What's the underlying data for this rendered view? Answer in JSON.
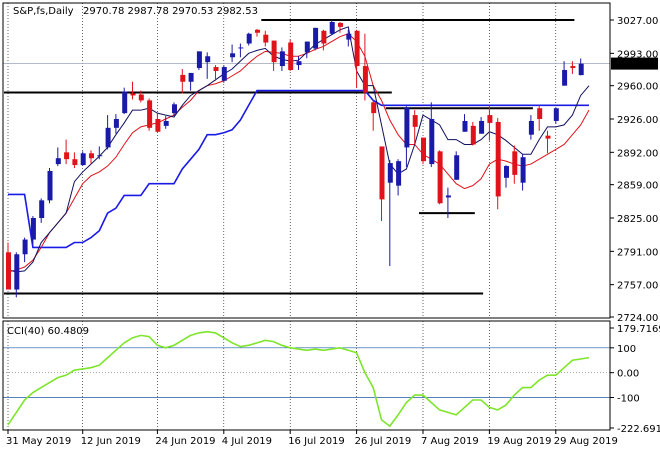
{
  "header": {
    "symbol": "S&P,fs,Daily",
    "ohlc": "2970.78 2987.78 2970.53 2982.53"
  },
  "price_tag": "2982.53",
  "cci": {
    "label": "CCI(40) 60.4809",
    "axis_labels": [
      "179.7169",
      "100",
      "0.00",
      "-100",
      "-222.6919"
    ]
  },
  "colors": {
    "bull": "#1a1aa8",
    "bear": "#e0121a",
    "kijun": "#1a1ae6",
    "tenkan": "#101060",
    "red_line": "#e0121a",
    "cci": "#7ee52a",
    "level": "#1b5aa6",
    "price_tag_bg": "#000000",
    "price_tag_fg": "#ffffff"
  },
  "chart_data": {
    "type": "candlestick",
    "y_ticks": [
      3027.0,
      2993.0,
      2960.0,
      2926.0,
      2892.0,
      2859.0,
      2825.0,
      2791.0,
      2757.0,
      2724.0
    ],
    "y_tick_labels": [
      "3027.00",
      "2993.00",
      "2960.00",
      "2926.00",
      "2892.00",
      "2859.00",
      "2825.00",
      "2791.00",
      "2757.00",
      "2724.00"
    ],
    "x_tick_labels": [
      "31 May 2019",
      "12 Jun 2019",
      "24 Jun 2019",
      "4 Jul 2019",
      "16 Jul 2019",
      "26 Jul 2019",
      "7 Aug 2019",
      "19 Aug 2019",
      "29 Aug 2019"
    ],
    "candles": [
      {
        "date": "31 May",
        "o": 2790,
        "h": 2800,
        "l": 2752,
        "c": 2752
      },
      {
        "date": "3 Jun",
        "o": 2752,
        "h": 2790,
        "l": 2744,
        "c": 2788
      },
      {
        "date": "4 Jun",
        "o": 2788,
        "h": 2805,
        "l": 2780,
        "c": 2803
      },
      {
        "date": "5 Jun",
        "o": 2803,
        "h": 2827,
        "l": 2798,
        "c": 2825
      },
      {
        "date": "6 Jun",
        "o": 2825,
        "h": 2845,
        "l": 2820,
        "c": 2843
      },
      {
        "date": "7 Jun",
        "o": 2843,
        "h": 2876,
        "l": 2840,
        "c": 2873
      },
      {
        "date": "10 Jun",
        "o": 2880,
        "h": 2897,
        "l": 2878,
        "c": 2886
      },
      {
        "date": "11 Jun",
        "o": 2892,
        "h": 2905,
        "l": 2880,
        "c": 2885
      },
      {
        "date": "12 Jun",
        "o": 2885,
        "h": 2892,
        "l": 2876,
        "c": 2879
      },
      {
        "date": "13 Jun",
        "o": 2879,
        "h": 2893,
        "l": 2878,
        "c": 2891
      },
      {
        "date": "14 Jun",
        "o": 2891,
        "h": 2894,
        "l": 2880,
        "c": 2886
      },
      {
        "date": "17 Jun",
        "o": 2889,
        "h": 2898,
        "l": 2885,
        "c": 2889
      },
      {
        "date": "18 Jun",
        "o": 2897,
        "h": 2930,
        "l": 2895,
        "c": 2917
      },
      {
        "date": "19 Jun",
        "o": 2917,
        "h": 2931,
        "l": 2911,
        "c": 2926
      },
      {
        "date": "20 Jun",
        "o": 2932,
        "h": 2958,
        "l": 2931,
        "c": 2954
      },
      {
        "date": "21 Jun",
        "o": 2952,
        "h": 2964,
        "l": 2946,
        "c": 2950
      },
      {
        "date": "24 Jun",
        "o": 2951,
        "h": 2955,
        "l": 2943,
        "c": 2945
      },
      {
        "date": "25 Jun",
        "o": 2945,
        "h": 2947,
        "l": 2914,
        "c": 2917
      },
      {
        "date": "26 Jun",
        "o": 2926,
        "h": 2932,
        "l": 2912,
        "c": 2913
      },
      {
        "date": "27 Jun",
        "o": 2919,
        "h": 2929,
        "l": 2916,
        "c": 2924
      },
      {
        "date": "28 Jun",
        "o": 2932,
        "h": 2943,
        "l": 2929,
        "c": 2941
      },
      {
        "date": "1 Jul",
        "o": 2971,
        "h": 2977,
        "l": 2952,
        "c": 2964
      },
      {
        "date": "2 Jul",
        "o": 2964,
        "h": 2973,
        "l": 2955,
        "c": 2973
      },
      {
        "date": "3 Jul",
        "o": 2978,
        "h": 2995,
        "l": 2976,
        "c": 2995
      },
      {
        "date": "5 Jul",
        "o": 2984,
        "h": 2994,
        "l": 2967,
        "c": 2990
      },
      {
        "date": "8 Jul",
        "o": 2979,
        "h": 2981,
        "l": 2965,
        "c": 2975
      },
      {
        "date": "9 Jul",
        "o": 2965,
        "h": 2981,
        "l": 2963,
        "c": 2979
      },
      {
        "date": "10 Jul",
        "o": 2989,
        "h": 3002,
        "l": 2984,
        "c": 2993
      },
      {
        "date": "11 Jul",
        "o": 2999,
        "h": 3003,
        "l": 2989,
        "c": 2999
      },
      {
        "date": "12 Jul",
        "o": 3003,
        "h": 3014,
        "l": 3001,
        "c": 3013
      },
      {
        "date": "15 Jul",
        "o": 3017,
        "h": 3018,
        "l": 3010,
        "c": 3014
      },
      {
        "date": "16 Jul",
        "o": 3012,
        "h": 3016,
        "l": 3000,
        "c": 3004
      },
      {
        "date": "17 Jul",
        "o": 3006,
        "h": 3006,
        "l": 2975,
        "c": 2984
      },
      {
        "date": "18 Jul",
        "o": 2980,
        "h": 2999,
        "l": 2975,
        "c": 2995
      },
      {
        "date": "19 Jul",
        "o": 3004,
        "h": 3007,
        "l": 2975,
        "c": 2976
      },
      {
        "date": "22 Jul",
        "o": 2981,
        "h": 2990,
        "l": 2976,
        "c": 2985
      },
      {
        "date": "23 Jul",
        "o": 2994,
        "h": 3005,
        "l": 2988,
        "c": 3005
      },
      {
        "date": "24 Jul",
        "o": 2998,
        "h": 3019,
        "l": 2996,
        "c": 3019
      },
      {
        "date": "25 Jul",
        "o": 3016,
        "h": 3017,
        "l": 2996,
        "c": 3003
      },
      {
        "date": "26 Jul",
        "o": 3013,
        "h": 3027,
        "l": 3012,
        "c": 3025
      },
      {
        "date": "29 Jul",
        "o": 3024,
        "h": 3025,
        "l": 3014,
        "c": 3020
      },
      {
        "date": "30 Jul",
        "o": 3007,
        "h": 3017,
        "l": 3000,
        "c": 3013
      },
      {
        "date": "31 Jul",
        "o": 3016,
        "h": 3017,
        "l": 2958,
        "c": 2980
      },
      {
        "date": "1 Aug",
        "o": 2980,
        "h": 3013,
        "l": 2945,
        "c": 2953
      },
      {
        "date": "2 Aug",
        "o": 2943,
        "h": 2945,
        "l": 2914,
        "c": 2932
      },
      {
        "date": "5 Aug",
        "o": 2898,
        "h": 2898,
        "l": 2822,
        "c": 2844
      },
      {
        "date": "6 Aug",
        "o": 2861,
        "h": 2884,
        "l": 2776,
        "c": 2881
      },
      {
        "date": "7 Aug",
        "o": 2858,
        "h": 2885,
        "l": 2848,
        "c": 2883
      },
      {
        "date": "8 Aug",
        "o": 2897,
        "h": 2939,
        "l": 2877,
        "c": 2938
      },
      {
        "date": "9 Aug",
        "o": 2930,
        "h": 2935,
        "l": 2900,
        "c": 2918
      },
      {
        "date": "12 Aug",
        "o": 2907,
        "h": 2907,
        "l": 2880,
        "c": 2883
      },
      {
        "date": "13 Aug",
        "o": 2880,
        "h": 2943,
        "l": 2877,
        "c": 2926
      },
      {
        "date": "14 Aug",
        "o": 2893,
        "h": 2894,
        "l": 2839,
        "c": 2840
      },
      {
        "date": "15 Aug",
        "o": 2846,
        "h": 2856,
        "l": 2825,
        "c": 2848
      },
      {
        "date": "16 Aug",
        "o": 2864,
        "h": 2893,
        "l": 2864,
        "c": 2889
      },
      {
        "date": "19 Aug",
        "o": 2913,
        "h": 2931,
        "l": 2913,
        "c": 2924
      },
      {
        "date": "20 Aug",
        "o": 2919,
        "h": 2923,
        "l": 2899,
        "c": 2900
      },
      {
        "date": "21 Aug",
        "o": 2911,
        "h": 2928,
        "l": 2911,
        "c": 2924
      },
      {
        "date": "22 Aug",
        "o": 2930,
        "h": 2940,
        "l": 2904,
        "c": 2922
      },
      {
        "date": "23 Aug",
        "o": 2923,
        "h": 2927,
        "l": 2834,
        "c": 2847
      },
      {
        "date": "26 Aug",
        "o": 2866,
        "h": 2879,
        "l": 2856,
        "c": 2878
      },
      {
        "date": "27 Aug",
        "o": 2893,
        "h": 2899,
        "l": 2860,
        "c": 2869
      },
      {
        "date": "28 Aug",
        "o": 2861,
        "h": 2890,
        "l": 2853,
        "c": 2887
      },
      {
        "date": "29 Aug",
        "o": 2910,
        "h": 2930,
        "l": 2905,
        "c": 2924
      },
      {
        "date": "30 Aug",
        "o": 2937,
        "h": 2940,
        "l": 2914,
        "c": 2926
      },
      {
        "date": "3 Sep",
        "o": 2909,
        "h": 2914,
        "l": 2891,
        "c": 2906
      },
      {
        "date": "4 Sep",
        "o": 2924,
        "h": 2938,
        "l": 2921,
        "c": 2937
      },
      {
        "date": "5 Sep",
        "o": 2960,
        "h": 2985,
        "l": 2960,
        "c": 2976
      },
      {
        "date": "6 Sep",
        "o": 2980,
        "h": 2985,
        "l": 2972,
        "c": 2978
      },
      {
        "date": "9 Sep",
        "o": 2970.78,
        "h": 2987.78,
        "l": 2970.53,
        "c": 2982.53
      }
    ],
    "tenkan": [
      2772,
      2770,
      2771,
      2780,
      2800,
      2810,
      2820,
      2830,
      2862,
      2872,
      2880,
      2888,
      2897,
      2910,
      2922,
      2935,
      2935,
      2937,
      2932,
      2930,
      2928,
      2940,
      2950,
      2955,
      2960,
      2966,
      2972,
      2977,
      2985,
      2993,
      2996,
      2998,
      2990,
      2987,
      2985,
      2986,
      2994,
      3002,
      3007,
      3012,
      3017,
      3020,
      2975,
      2960,
      2960,
      2920,
      2880,
      2870,
      2875,
      2900,
      2930,
      2925,
      2920,
      2905,
      2905,
      2900,
      2900,
      2905,
      2913,
      2910,
      2904,
      2897,
      2890,
      2890,
      2905,
      2918,
      2918,
      2920,
      2930,
      2950,
      2960
    ],
    "kijun": [
      2849,
      2849,
      2849,
      2795,
      2795,
      2795,
      2795,
      2795,
      2800,
      2800,
      2805,
      2812,
      2830,
      2835,
      2848,
      2848,
      2848,
      2860,
      2860,
      2860,
      2860,
      2875,
      2885,
      2895,
      2910,
      2910,
      2912,
      2915,
      2925,
      2940,
      2955,
      2955,
      2955,
      2955,
      2955,
      2955,
      2955,
      2955,
      2955,
      2955,
      2955,
      2955,
      2955,
      2955,
      2945,
      2940,
      2940,
      2940,
      2940,
      2940,
      2940,
      2940,
      2940,
      2940,
      2940,
      2940,
      2940,
      2940,
      2940,
      2940,
      2940,
      2940,
      2940,
      2940,
      2940,
      2940,
      2940,
      2940,
      2940,
      2940,
      2940
    ],
    "red_line_series": [
      2770,
      2772,
      2775,
      2782,
      2795,
      2810,
      2820,
      2830,
      2845,
      2860,
      2868,
      2872,
      2878,
      2887,
      2900,
      2912,
      2918,
      2920,
      2922,
      2926,
      2930,
      2938,
      2945,
      2955,
      2960,
      2962,
      2965,
      2970,
      2975,
      2983,
      2990,
      2995,
      2994,
      2993,
      2990,
      2990,
      2993,
      2997,
      3000,
      3005,
      3010,
      3013,
      3005,
      2990,
      2960,
      2945,
      2925,
      2910,
      2900,
      2900,
      2890,
      2885,
      2880,
      2870,
      2860,
      2855,
      2858,
      2865,
      2880,
      2885,
      2883,
      2880,
      2878,
      2880,
      2885,
      2890,
      2895,
      2900,
      2910,
      2920,
      2935
    ],
    "horizontal_levels": [
      {
        "price": 3027,
        "from": "16 Jul",
        "to": "6 Sep"
      },
      {
        "price": 2953,
        "from": "31 May",
        "to": "6 Aug"
      },
      {
        "price": 2748,
        "from": "31 May",
        "to": "21 Aug"
      },
      {
        "price": 2937,
        "from": "6 Aug",
        "to": "29 Aug"
      },
      {
        "price": 2830,
        "from": "12 Aug",
        "to": "20 Aug"
      }
    ],
    "cci_values": [
      -210,
      -160,
      -110,
      -80,
      -60,
      -40,
      -20,
      -10,
      10,
      15,
      20,
      30,
      60,
      90,
      120,
      140,
      150,
      145,
      110,
      100,
      110,
      130,
      150,
      160,
      165,
      160,
      140,
      120,
      105,
      110,
      120,
      130,
      125,
      110,
      100,
      95,
      90,
      95,
      90,
      95,
      100,
      90,
      80,
      0,
      -60,
      -190,
      -215,
      -170,
      -120,
      -90,
      -90,
      -120,
      -150,
      -160,
      -170,
      -140,
      -110,
      -110,
      -140,
      -150,
      -130,
      -90,
      -60,
      -60,
      -30,
      -10,
      -10,
      20,
      50,
      55,
      60.48
    ]
  }
}
